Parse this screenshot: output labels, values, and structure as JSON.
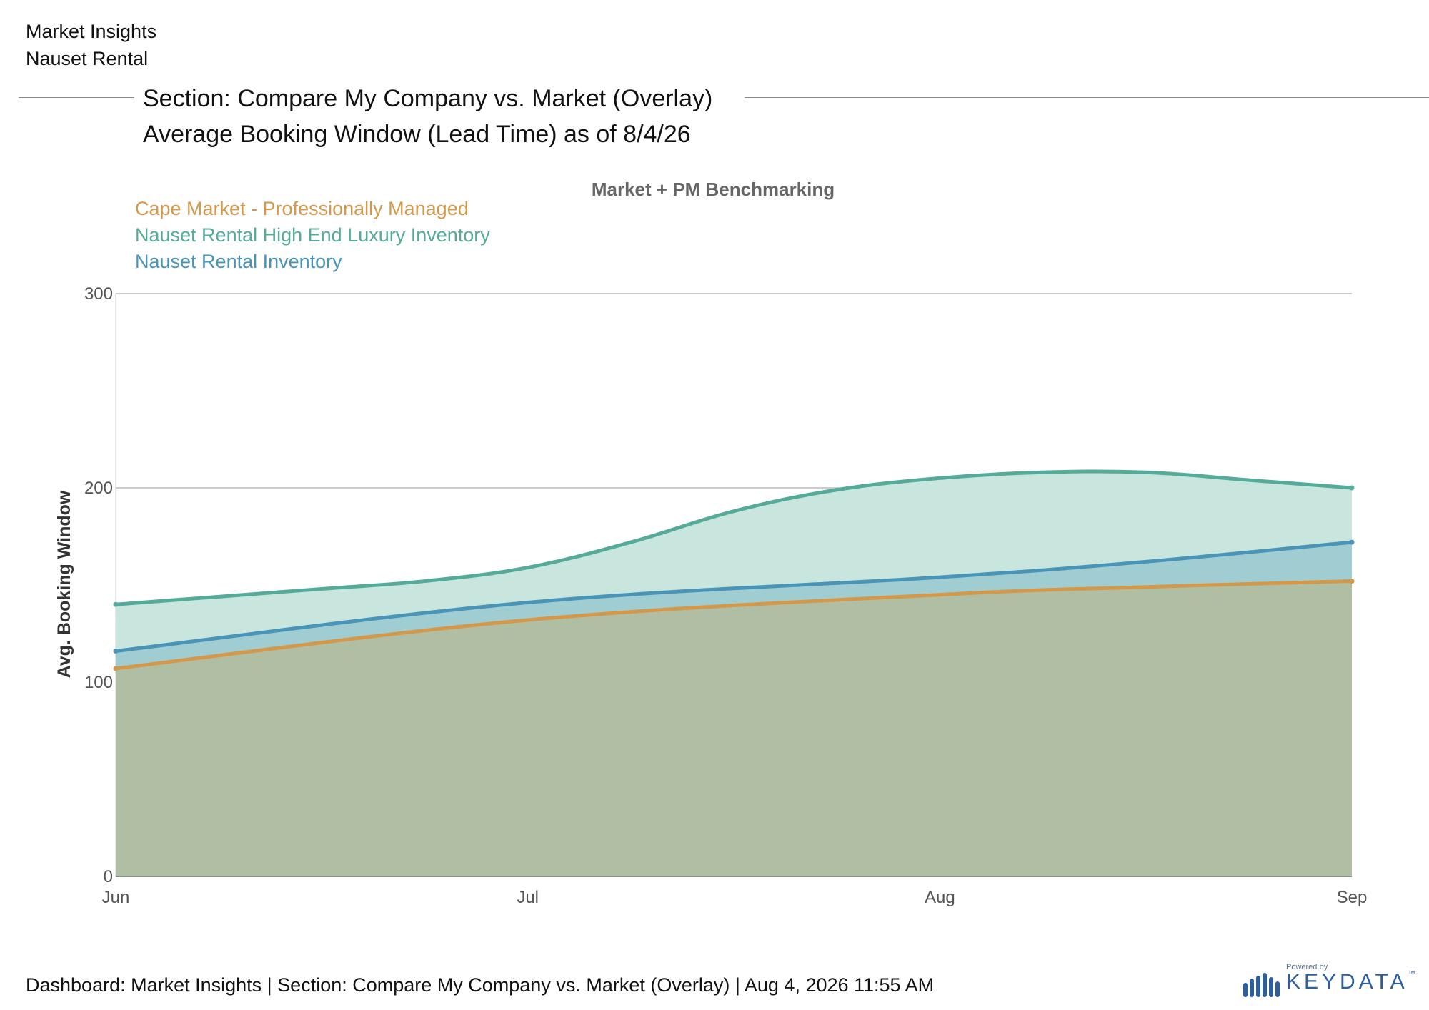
{
  "header": {
    "line1": "Market Insights",
    "line2": "Nauset Rental"
  },
  "section": {
    "title": "Section: Compare My Company vs. Market (Overlay)",
    "subtitle": "Average Booking Window (Lead Time) as of 8/4/26"
  },
  "footer": {
    "text": "Dashboard: Market Insights | Section: Compare My Company vs. Market (Overlay) | Aug 4, 2026 11:55 AM"
  },
  "brand": {
    "powered_by": "Powered by",
    "name": "KEYDATA",
    "tm": "™",
    "color": "#2f5f9a"
  },
  "chart_data": {
    "type": "area",
    "title": "Market + PM Benchmarking",
    "xlabel": "",
    "ylabel": "Avg. Booking Window",
    "categories": [
      "Jun",
      "Jul",
      "Aug",
      "Sep"
    ],
    "ylim": [
      0,
      300
    ],
    "yticks": [
      0,
      100,
      200,
      300
    ],
    "grid": true,
    "legend_position": "top-left",
    "series": [
      {
        "name": "Cape Market - Professionally Managed",
        "color": "#d4984a",
        "fill": "#b0bea4",
        "x": [
          0,
          1,
          2,
          2.5,
          3
        ],
        "values": [
          107,
          132,
          145,
          149,
          152
        ]
      },
      {
        "name": "Nauset Rental High End Luxury Inventory",
        "color": "#55ab99",
        "fill": "#c8e5de",
        "x": [
          0,
          0.25,
          0.5,
          0.75,
          1,
          1.25,
          1.5,
          1.75,
          2,
          2.25,
          2.5,
          2.75,
          3
        ],
        "values": [
          140,
          144,
          148,
          152,
          159,
          172,
          188,
          199,
          205,
          208,
          208,
          204,
          200
        ]
      },
      {
        "name": "Nauset Rental Inventory",
        "color": "#4a94b8",
        "fill": "#a0cdd2",
        "x": [
          0,
          1,
          2,
          2.5,
          3
        ],
        "values": [
          116,
          141,
          154,
          162,
          172
        ]
      }
    ]
  }
}
